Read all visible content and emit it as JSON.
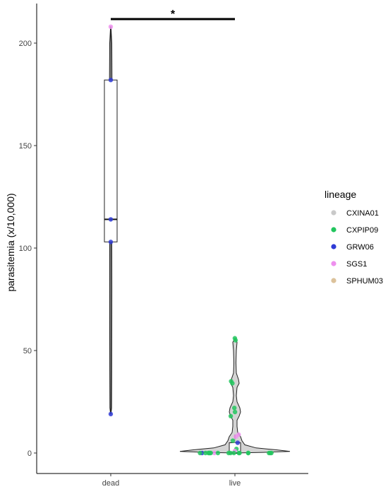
{
  "chart_data": {
    "type": "violin",
    "title": "",
    "xlabel": "",
    "ylabel": "parasitemia (x/10,000)",
    "ylim": [
      -10,
      220
    ],
    "yticks": [
      0,
      50,
      100,
      150,
      200
    ],
    "categories": [
      "dead",
      "live"
    ],
    "significance": {
      "from": "dead",
      "to": "live",
      "label": "*"
    },
    "boxes": [
      {
        "category": "dead",
        "min": 19,
        "q1": 103,
        "median": 114,
        "q3": 182,
        "max": 208
      },
      {
        "category": "live",
        "min": 0,
        "q1": 0,
        "median": 0,
        "q3": 5,
        "max": 9
      }
    ],
    "legend": {
      "title": "lineage",
      "position": "right",
      "items": [
        {
          "name": "CXINA01",
          "color": "#c9c9c9"
        },
        {
          "name": "CXPIP09",
          "color": "#22c55e"
        },
        {
          "name": "GRW06",
          "color": "#2f3bd6"
        },
        {
          "name": "SGS1",
          "color": "#ee90ee"
        },
        {
          "name": "SPHUM03",
          "color": "#dcc29b"
        }
      ]
    },
    "points": [
      {
        "group": "dead",
        "lineage": "SGS1",
        "y": 208
      },
      {
        "group": "dead",
        "lineage": "GRW06",
        "y": 182
      },
      {
        "group": "dead",
        "lineage": "GRW06",
        "y": 114
      },
      {
        "group": "dead",
        "lineage": "GRW06",
        "y": 103
      },
      {
        "group": "dead",
        "lineage": "GRW06",
        "y": 19
      },
      {
        "group": "live",
        "lineage": "CXPIP09",
        "y": 56
      },
      {
        "group": "live",
        "lineage": "CXPIP09",
        "y": 55
      },
      {
        "group": "live",
        "lineage": "CXPIP09",
        "y": 35
      },
      {
        "group": "live",
        "lineage": "CXPIP09",
        "y": 34
      },
      {
        "group": "live",
        "lineage": "CXPIP09",
        "y": 22
      },
      {
        "group": "live",
        "lineage": "CXPIP09",
        "y": 20
      },
      {
        "group": "live",
        "lineage": "CXPIP09",
        "y": 18
      },
      {
        "group": "live",
        "lineage": "SGS1",
        "y": 9
      },
      {
        "group": "live",
        "lineage": "SGS1",
        "y": 8
      },
      {
        "group": "live",
        "lineage": "CXINA01",
        "y": 6
      },
      {
        "group": "live",
        "lineage": "CXPIP09",
        "y": 6
      },
      {
        "group": "live",
        "lineage": "GRW06",
        "y": 5
      },
      {
        "group": "live",
        "lineage": "CXPIP09",
        "y": 2
      },
      {
        "group": "live",
        "lineage": "GRW06",
        "y": 0
      },
      {
        "group": "live",
        "lineage": "SGS1",
        "y": 1
      },
      {
        "group": "live",
        "lineage": "SGS1",
        "y": 0
      },
      {
        "group": "live",
        "lineage": "CXPIP09",
        "y": 0
      },
      {
        "group": "live",
        "lineage": "CXPIP09",
        "y": 0
      },
      {
        "group": "live",
        "lineage": "CXPIP09",
        "y": 0
      },
      {
        "group": "live",
        "lineage": "CXPIP09",
        "y": 0
      },
      {
        "group": "live",
        "lineage": "CXPIP09",
        "y": 0
      },
      {
        "group": "live",
        "lineage": "CXPIP09",
        "y": 0
      },
      {
        "group": "live",
        "lineage": "CXPIP09",
        "y": 0
      },
      {
        "group": "live",
        "lineage": "CXPIP09",
        "y": 0
      },
      {
        "group": "live",
        "lineage": "CXPIP09",
        "y": 0
      },
      {
        "group": "live",
        "lineage": "CXPIP09",
        "y": 0
      },
      {
        "group": "live",
        "lineage": "CXPIP09",
        "y": 0
      },
      {
        "group": "live",
        "lineage": "CXPIP09",
        "y": 0
      },
      {
        "group": "live",
        "lineage": "CXPIP09",
        "y": 0
      },
      {
        "group": "live",
        "lineage": "CXPIP09",
        "y": 0
      },
      {
        "group": "live",
        "lineage": "CXPIP09",
        "y": 0
      },
      {
        "group": "live",
        "lineage": "CXPIP09",
        "y": 0
      },
      {
        "group": "live",
        "lineage": "CXPIP09",
        "y": 0
      }
    ]
  }
}
